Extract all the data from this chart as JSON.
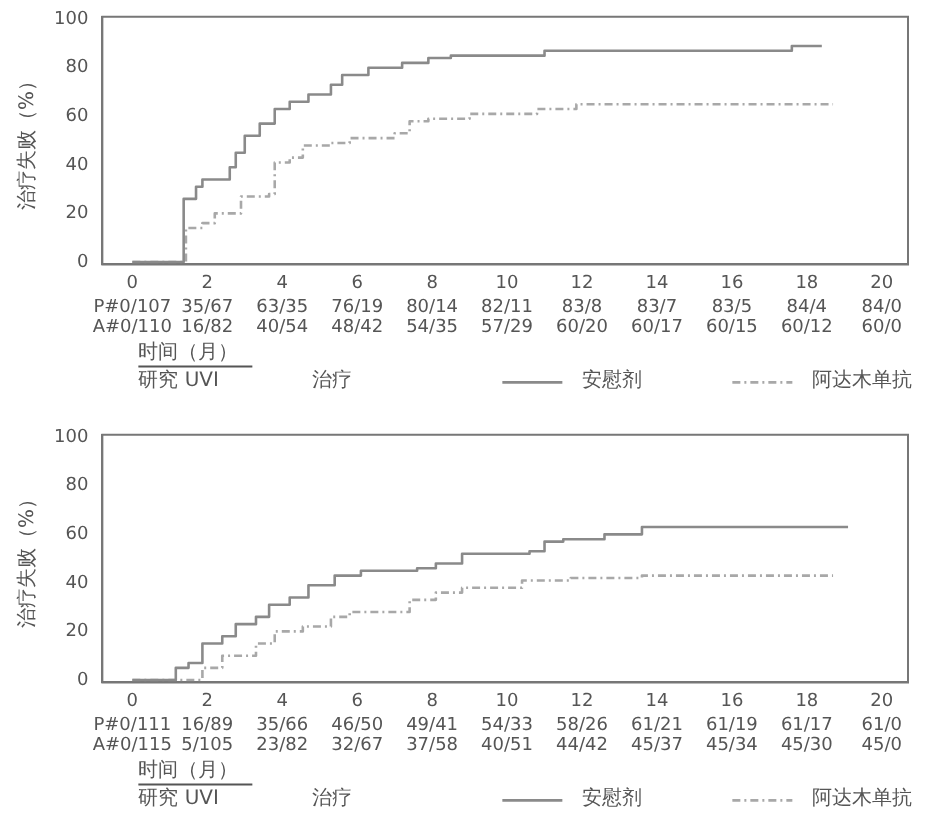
{
  "chart_data": [
    {
      "type": "step",
      "xlabel": "时间（月）",
      "ylabel": "治疗失败（%）",
      "legend_title": "治疗",
      "legend": "bottom",
      "xlim": [
        -0.8,
        20.7
      ],
      "ylim": [
        -1,
        101
      ],
      "xticks": [
        0,
        2,
        4,
        6,
        8,
        10,
        12,
        14,
        16,
        18,
        20
      ],
      "yticks": [
        0,
        20,
        40,
        60,
        80,
        100
      ],
      "grid": false,
      "annotations": [
        "P#0/107 35/67 63/35 76/19 80/14 82/11 83/8 83/7 83/5 84/4 84/0",
        "A#0/110 16/82 40/54 48/42 54/35 57/29 60/20 60/17 60/15 60/12 60/0",
        "研究 UVI"
      ],
      "series": [
        {
          "name": "安慰剂",
          "color": "#8a8a8a",
          "line_style": "solid",
          "x": [
            0,
            1.34,
            1.37,
            1.7,
            1.87,
            2.6,
            2.76,
            3.0,
            3.4,
            3.8,
            4.2,
            4.7,
            5.3,
            5.6,
            6.3,
            7.2,
            7.9,
            8.5,
            11,
            17.6,
            18.4
          ],
          "values": [
            0,
            0,
            26,
            31,
            34,
            39,
            45,
            52,
            57,
            63,
            66,
            69,
            73,
            77,
            80,
            82,
            84,
            85,
            87,
            89,
            89
          ]
        },
        {
          "name": "阿达木单抗",
          "color": "#a8a8a8",
          "line_style": "dashed",
          "x": [
            0,
            1.43,
            1.87,
            2.2,
            2.9,
            3.65,
            3.8,
            4.2,
            4.55,
            5.3,
            5.8,
            7.0,
            7.4,
            7.9,
            9.0,
            10.8,
            11.85,
            18.7
          ],
          "values": [
            0,
            14,
            16,
            20,
            27,
            28,
            41,
            43,
            48,
            49,
            51,
            53,
            58,
            59,
            61,
            63,
            65,
            65
          ]
        }
      ]
    },
    {
      "type": "step",
      "xlabel": "时间（月）",
      "ylabel": "治疗失败（%）",
      "legend_title": "治疗",
      "legend": "bottom",
      "xlim": [
        -0.8,
        20.7
      ],
      "ylim": [
        -1,
        101
      ],
      "xticks": [
        0,
        2,
        4,
        6,
        8,
        10,
        12,
        14,
        16,
        18,
        20
      ],
      "yticks": [
        0,
        20,
        40,
        60,
        80,
        100
      ],
      "grid": false,
      "annotations": [
        "P#0/111 16/89 35/66 46/50 49/41 54/33 58/26 61/21 61/19 61/17 61/0",
        "A#0/115 5/105 23/82 32/67 37/58 40/51 44/42 45/37 45/34 45/30 45/0",
        "研究 UVI"
      ],
      "series": [
        {
          "name": "安慰剂",
          "color": "#8a8a8a",
          "line_style": "solid",
          "x": [
            0,
            0.8,
            1.16,
            1.5,
            1.87,
            2.4,
            2.76,
            3.3,
            3.65,
            4.2,
            4.7,
            5.4,
            6.1,
            7.6,
            8.1,
            8.8,
            10.6,
            11,
            11.5,
            12.6,
            13.6,
            19.1
          ],
          "values": [
            0,
            0,
            5,
            7,
            15,
            18,
            23,
            26,
            31,
            34,
            39,
            43,
            45,
            46,
            48,
            52,
            53,
            57,
            58,
            60,
            63,
            63
          ]
        },
        {
          "name": "阿达木单抗",
          "color": "#a8a8a8",
          "line_style": "dashed",
          "x": [
            0,
            1.7,
            1.87,
            2.4,
            3.3,
            3.8,
            4.55,
            5.3,
            5.8,
            7.4,
            8.1,
            8.8,
            10.4,
            11.7,
            13.6,
            18.7
          ],
          "values": [
            0,
            0,
            5,
            10,
            15,
            20,
            22,
            26,
            28,
            33,
            36,
            38,
            41,
            42,
            43,
            43
          ]
        }
      ]
    }
  ]
}
